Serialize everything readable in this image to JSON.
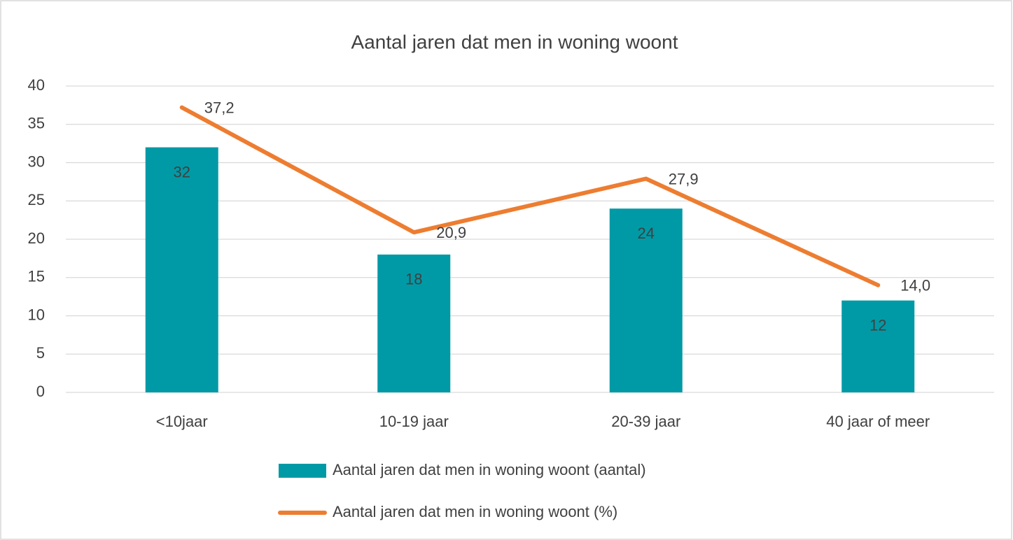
{
  "chart_data": {
    "type": "combo",
    "title": "Aantal jaren dat men in woning woont",
    "categories": [
      "<10jaar",
      "10-19 jaar",
      "20-39 jaar",
      "40 jaar of meer"
    ],
    "series": [
      {
        "name": "Aantal jaren dat men in woning woont (aantal)",
        "type": "bar",
        "color": "#009aa6",
        "values": [
          32,
          18,
          24,
          12
        ]
      },
      {
        "name": "Aantal jaren dat men in woning woont (%)",
        "type": "line",
        "color": "#ed7d31",
        "values": [
          37.2,
          20.9,
          27.9,
          14.0
        ],
        "value_labels": [
          "37,2",
          "20,9",
          "27,9",
          "14,0"
        ]
      }
    ],
    "ylim": [
      0,
      40
    ],
    "yticks": [
      0,
      5,
      10,
      15,
      20,
      25,
      30,
      35,
      40
    ],
    "grid": true,
    "legend": "bottom"
  }
}
